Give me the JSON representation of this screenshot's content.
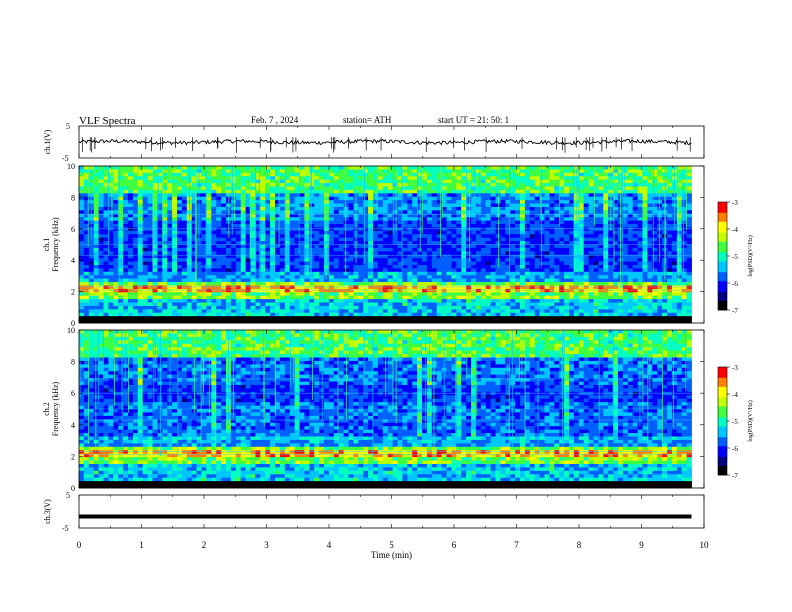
{
  "header": {
    "title": "VLF  Spectra",
    "date": "Feb. 7  , 2024",
    "station": "station= ATH",
    "start": "start  UT  =   21: 50: 1"
  },
  "chart_data": [
    {
      "type": "line",
      "panel": "ch1-waveform",
      "ylabel": "ch.1(V)",
      "ylim": [
        -5,
        5
      ],
      "yticks": [
        "5",
        "-5"
      ],
      "xlim": [
        0,
        10
      ],
      "baseline": 0,
      "color": "#000000"
    },
    {
      "type": "heatmap",
      "panel": "ch1-spectrogram",
      "ylabel_channel": "ch.1",
      "ylabel": "Frequency (kHz)",
      "ylim": [
        0,
        10
      ],
      "yticks": [
        "0",
        "2",
        "4",
        "6",
        "8",
        "10"
      ],
      "xlim": [
        0,
        10
      ],
      "data_end_min": 9.8,
      "colorbar": {
        "label": "log(PSD)(V²/Hz)",
        "range": [
          -7,
          -3
        ],
        "ticks": [
          "-3",
          "-4",
          "-5",
          "-6",
          "-7"
        ]
      }
    },
    {
      "type": "heatmap",
      "panel": "ch2-spectrogram",
      "ylabel_channel": "ch.2",
      "ylabel": "Frequency (kHz)",
      "ylim": [
        0,
        10
      ],
      "yticks": [
        "0",
        "2",
        "4",
        "6",
        "8",
        "10"
      ],
      "xlim": [
        0,
        10
      ],
      "data_end_min": 9.8,
      "colorbar": {
        "label": "log(PSD)(V²/Hz)",
        "range": [
          -7,
          -3
        ],
        "ticks": [
          "-3",
          "-4",
          "-5",
          "-6",
          "-7"
        ]
      }
    },
    {
      "type": "line",
      "panel": "ch3-waveform",
      "ylabel": "ch.3(V)",
      "ylim": [
        -5,
        5
      ],
      "yticks": [
        "5",
        "-5"
      ],
      "xlim": [
        0,
        10
      ],
      "baseline": -1.5,
      "color": "#000000"
    }
  ],
  "xaxis": {
    "label": "Time  (min)",
    "ticks": [
      "0",
      "1",
      "2",
      "3",
      "4",
      "5",
      "6",
      "7",
      "8",
      "9",
      "10"
    ]
  },
  "palette": [
    "#000000",
    "#000080",
    "#0000ff",
    "#0060ff",
    "#00c8ff",
    "#00ffc0",
    "#40ff40",
    "#c0ff00",
    "#ffff00",
    "#ff8000",
    "#ff0000",
    "#ffffff"
  ]
}
